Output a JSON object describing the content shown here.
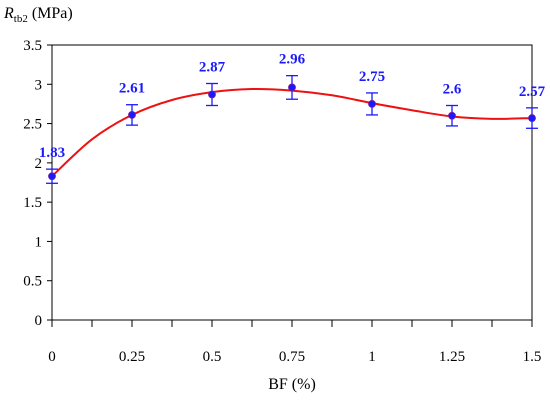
{
  "chart_data": {
    "type": "line",
    "x": [
      0,
      0.25,
      0.5,
      0.75,
      1,
      1.25,
      1.5
    ],
    "x_tick_labels": [
      "0",
      "0.25",
      "0.5",
      "0.75",
      "1",
      "1.25",
      "1.5"
    ],
    "y_tick_labels": [
      "0",
      "0.5",
      "1",
      "1.5",
      "2",
      "2.5",
      "3",
      "3.5"
    ],
    "xlim": [
      0,
      1.5
    ],
    "ylim": [
      0,
      3.5
    ],
    "xlabel": "BF (%)",
    "ylabel_symbol": "R",
    "ylabel_subscript": "tb2",
    "ylabel_unit": "(MPa)",
    "series": [
      {
        "values": [
          1.83,
          2.61,
          2.87,
          2.96,
          2.75,
          2.6,
          2.57
        ],
        "errors": [
          0.09,
          0.13,
          0.14,
          0.15,
          0.14,
          0.13,
          0.13
        ],
        "data_labels": [
          "1.83",
          "2.61",
          "2.87",
          "2.96",
          "2.75",
          "2.6",
          "2.57"
        ],
        "marker_color": "#1a1aff",
        "error_bar_color": "#1a1aff"
      }
    ],
    "fit_curve": {
      "color": "#ee1111",
      "x": [
        0,
        0.125,
        0.25,
        0.375,
        0.5,
        0.625,
        0.75,
        0.875,
        1,
        1.125,
        1.25,
        1.375,
        1.5
      ],
      "y": [
        1.83,
        2.3,
        2.61,
        2.8,
        2.9,
        2.94,
        2.92,
        2.86,
        2.76,
        2.67,
        2.59,
        2.56,
        2.57
      ]
    },
    "grid": false,
    "legend": "none"
  }
}
